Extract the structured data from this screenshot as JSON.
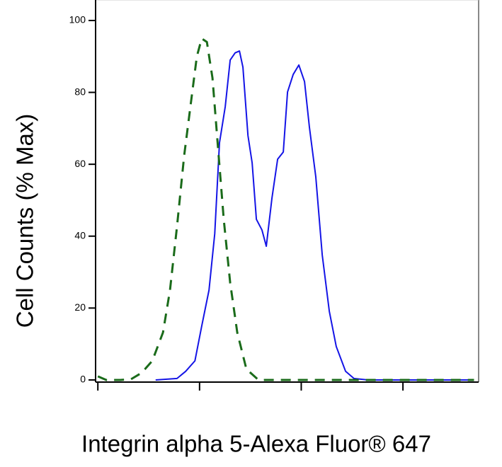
{
  "chart_data": {
    "type": "line",
    "x_label": "Integrin alpha 5-Alexa Fluor® 647",
    "y_label": "Cell Counts (% Max)",
    "x_scale": "log",
    "xlim": [
      0.95,
      5550
    ],
    "xticks": [
      1,
      10,
      100,
      1000
    ],
    "ylim": [
      -0.6,
      105.7
    ],
    "yticks": [
      0,
      20,
      40,
      60,
      80,
      100
    ],
    "series": [
      {
        "color": "#1414e6",
        "dash": false,
        "x": [
          3.7,
          6.0,
          7.3,
          9.0,
          10.5,
          12.4,
          14.1,
          15.7,
          17.9,
          20.0,
          22.4,
          24.7,
          26.7,
          29.9,
          32.9,
          36.2,
          41.1,
          45.3,
          51.5,
          58.6,
          66.6,
          73.3,
          83.4,
          94.7,
          107.7,
          120.4,
          139,
          160.7,
          188.7,
          221,
          273,
          330,
          455,
          5000
        ],
        "values": [
          0,
          0.4,
          2.4,
          5.3,
          15,
          25,
          40.7,
          66,
          76,
          89,
          91,
          91.5,
          87,
          68,
          60.4,
          44.7,
          41.7,
          37.2,
          50.6,
          61.4,
          63.4,
          80.1,
          85,
          87.6,
          83,
          70.3,
          56.5,
          34.8,
          19.1,
          9.3,
          2.4,
          0.4,
          0,
          0
        ]
      },
      {
        "color": "#1a6b1a",
        "dash": true,
        "x": [
          1.0,
          1.21,
          1.67,
          2.12,
          2.7,
          3.43,
          4.37,
          5.12,
          6.0,
          7.06,
          8.3,
          9.4,
          10.5,
          11.8,
          13.4,
          15.3,
          17.3,
          20,
          23.5,
          28.9,
          38,
          5000
        ],
        "values": [
          1,
          0,
          0,
          0.2,
          2,
          5.3,
          13.2,
          25,
          42.7,
          62.4,
          78,
          90,
          95,
          94,
          84,
          63.4,
          44.7,
          27,
          13.2,
          3,
          0,
          0
        ]
      }
    ]
  }
}
